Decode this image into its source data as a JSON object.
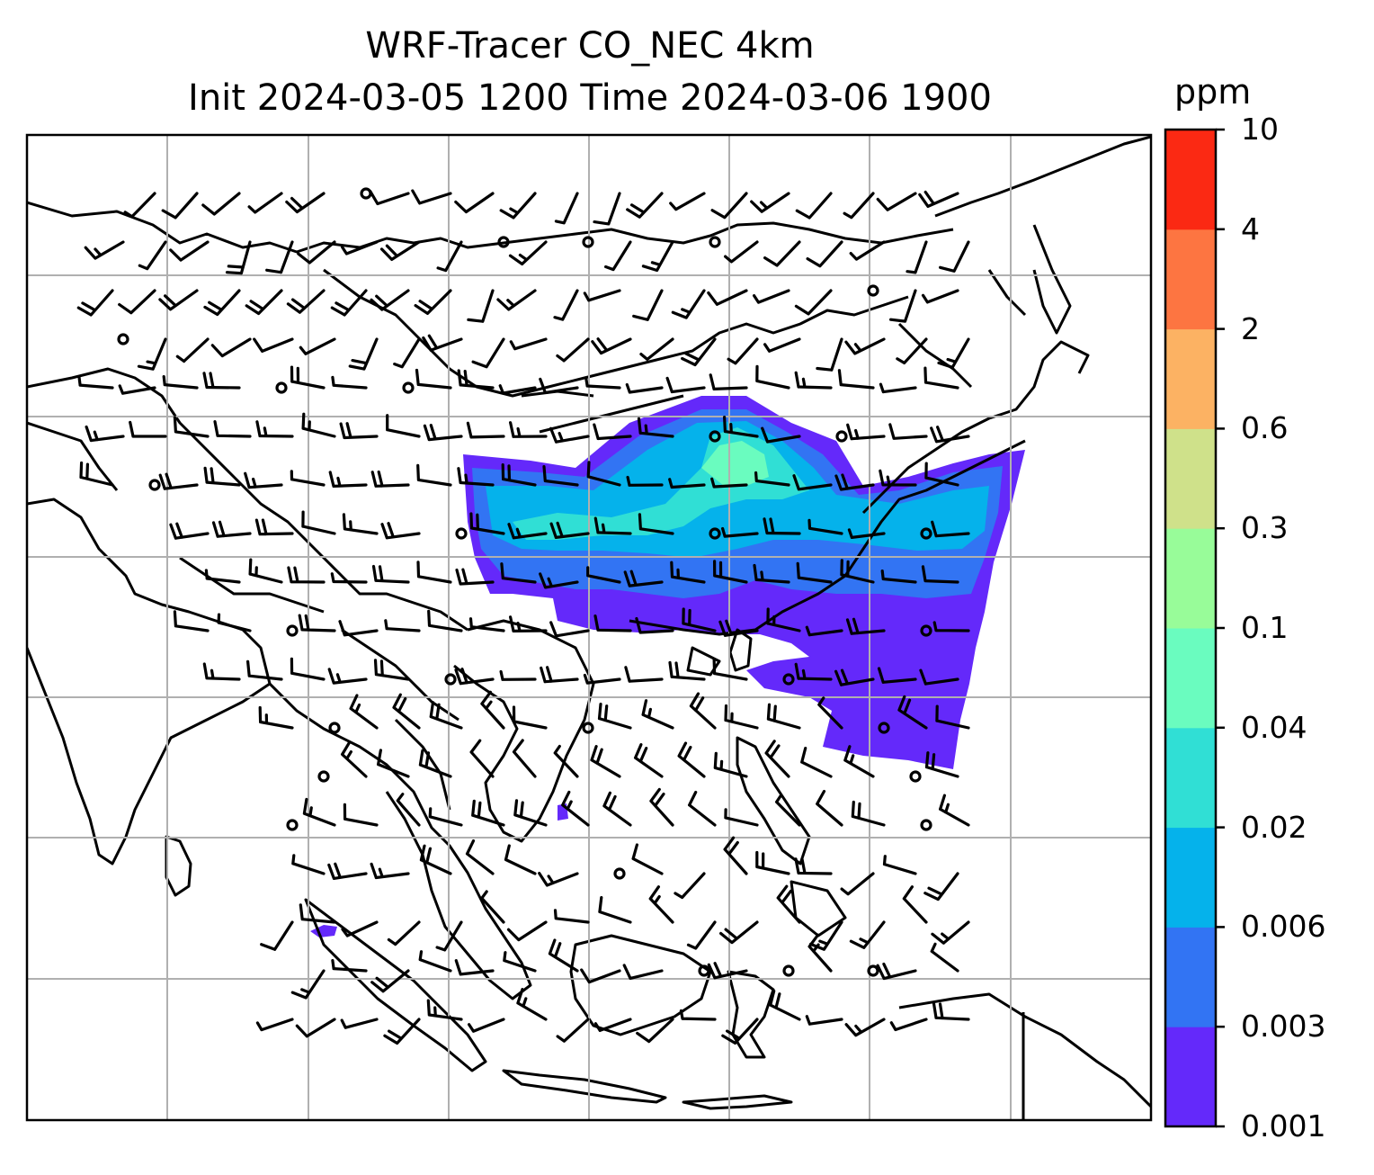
{
  "title": {
    "line1": "WRF-Tracer CO_NEC 4km",
    "line2": "Init 2024-03-05 1200 Time 2024-03-06 1900"
  },
  "colorbar": {
    "unit": "ppm",
    "levels": [
      "0.001",
      "0.003",
      "0.006",
      "0.02",
      "0.04",
      "0.1",
      "0.3",
      "0.6",
      "2",
      "4",
      "10"
    ],
    "colors": [
      "#6429fa",
      "#3274f3",
      "#05b2eb",
      "#30dfd5",
      "#6afcbf",
      "#98fc99",
      "#cfe18a",
      "#fcb263",
      "#fd7541",
      "#fb2913"
    ]
  },
  "map": {
    "gridlines": "on",
    "coastlines": "on",
    "wind_barbs": "on"
  }
}
